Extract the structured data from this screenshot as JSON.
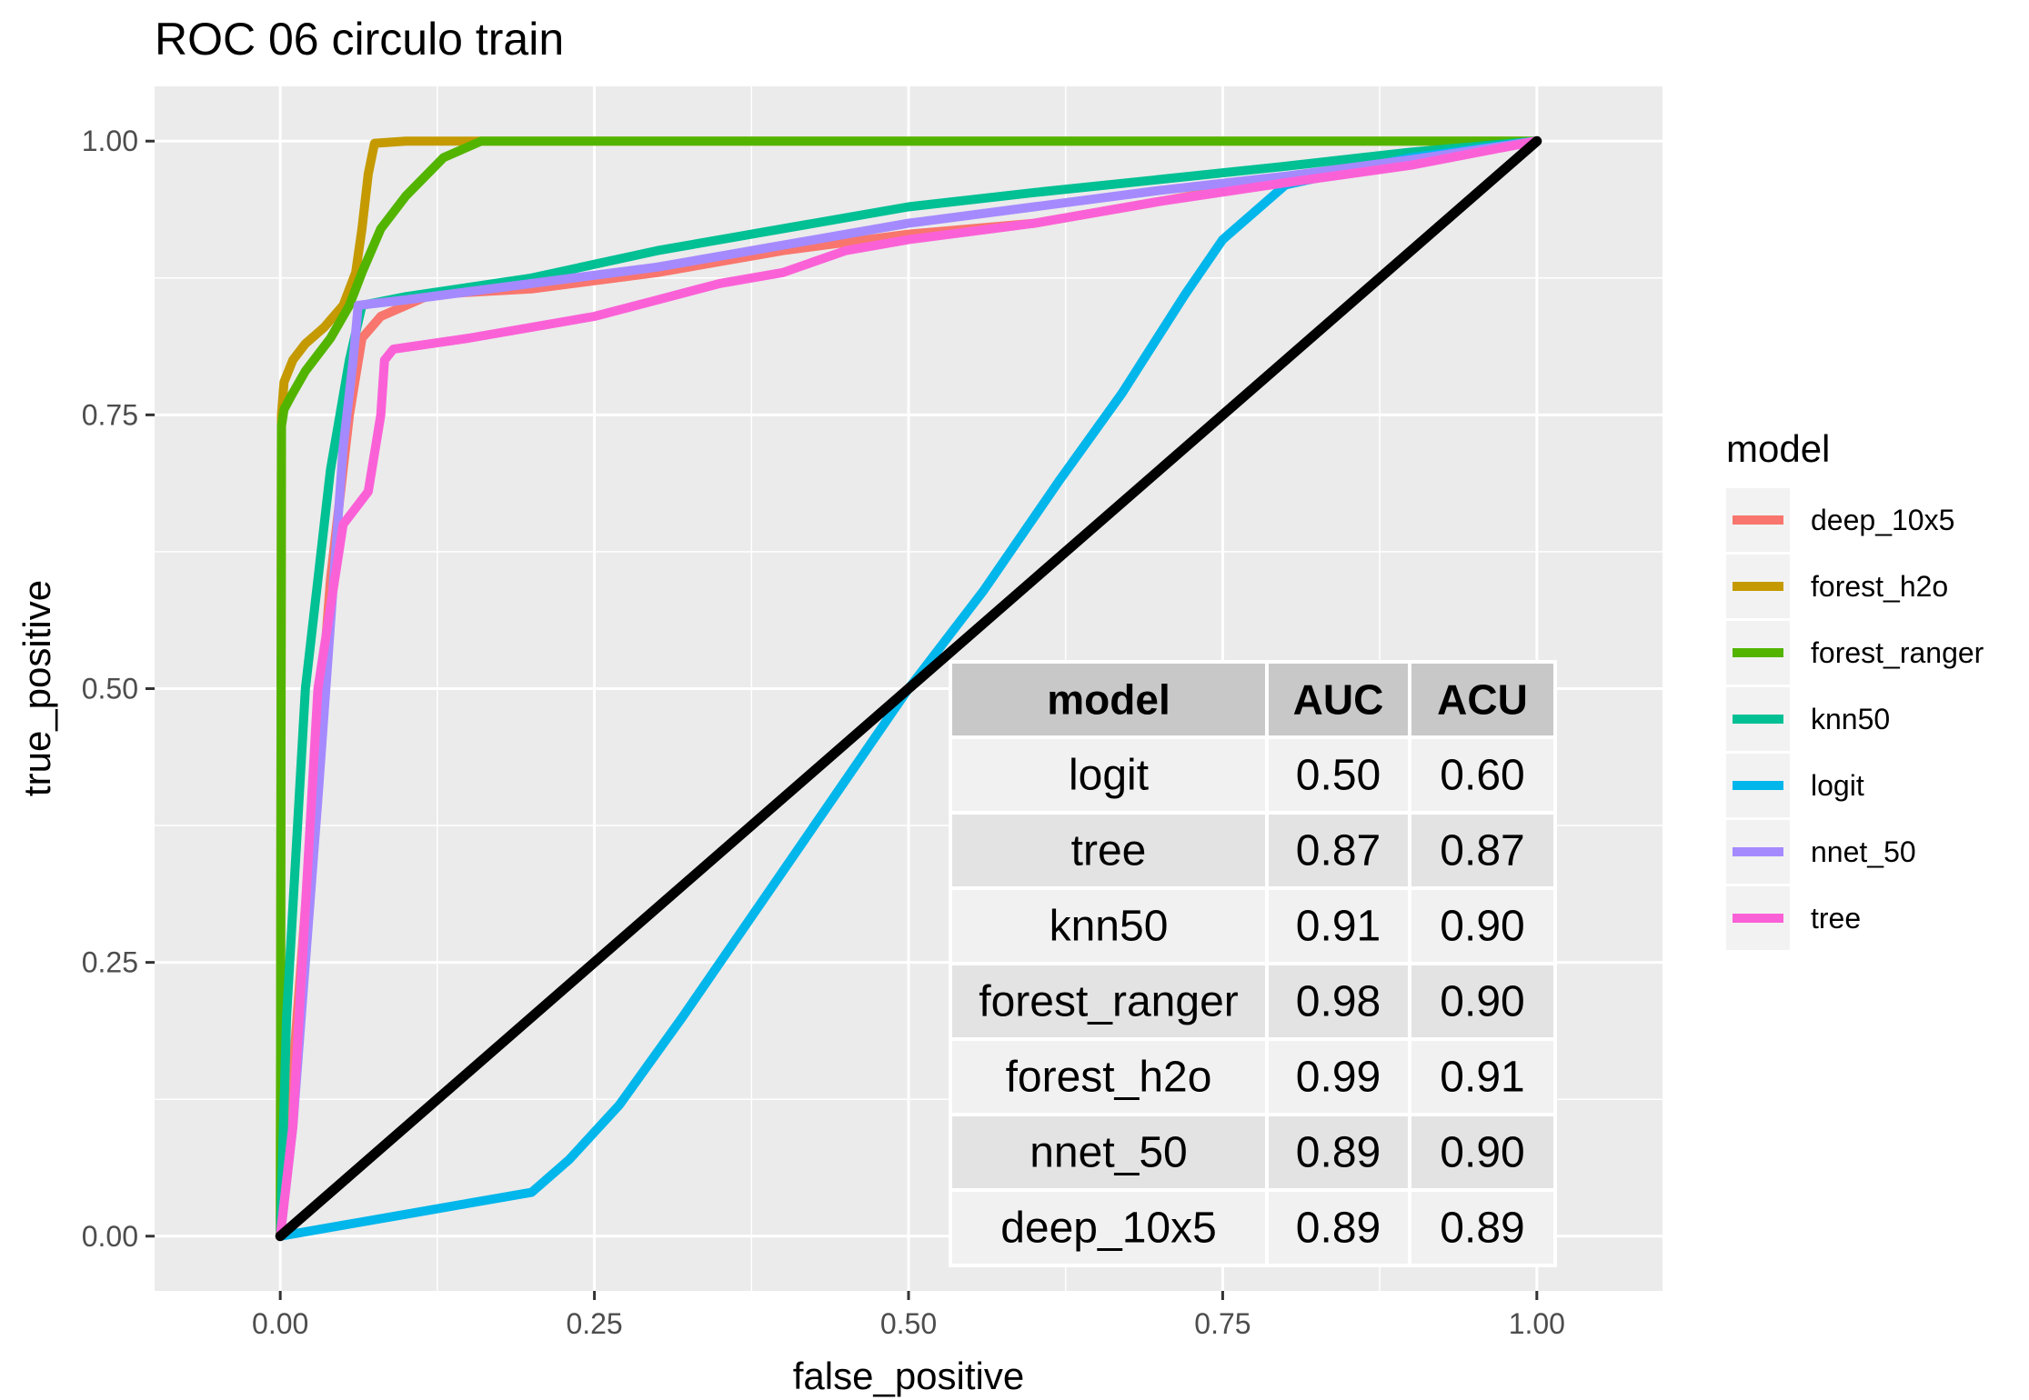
{
  "chart_data": {
    "type": "line",
    "title": "ROC 06 circulo train",
    "xlabel": "false_positive",
    "ylabel": "true_positive",
    "xlim": [
      -0.1,
      1.1
    ],
    "ylim": [
      -0.05,
      1.05
    ],
    "xticks": [
      "0.00",
      "0.25",
      "0.50",
      "0.75",
      "1.00"
    ],
    "yticks": [
      "0.00",
      "0.25",
      "0.50",
      "0.75",
      "1.00"
    ],
    "grid": true,
    "legend": {
      "title": "model",
      "position": "right",
      "entries": [
        "deep_10x5",
        "forest_h2o",
        "forest_ranger",
        "knn50",
        "logit",
        "nnet_50",
        "tree"
      ]
    },
    "colors": {
      "deep_10x5": "#F8766D",
      "forest_h2o": "#C49A00",
      "forest_ranger": "#53B400",
      "knn50": "#00C094",
      "logit": "#00B6EB",
      "nnet_50": "#A58AFF",
      "tree": "#FB61D7",
      "reference": "#000000"
    },
    "series": [
      {
        "name": "deep_10x5",
        "x": [
          0,
          0.02,
          0.04,
          0.055,
          0.065,
          0.08,
          0.12,
          0.2,
          0.3,
          0.4,
          0.5,
          0.6,
          0.7,
          0.75,
          0.8,
          0.85,
          0.9,
          1.0
        ],
        "y": [
          0,
          0.3,
          0.6,
          0.75,
          0.82,
          0.84,
          0.86,
          0.865,
          0.88,
          0.9,
          0.915,
          0.925,
          0.945,
          0.955,
          0.965,
          0.975,
          0.983,
          1.0
        ]
      },
      {
        "name": "forest_h2o",
        "x": [
          0,
          0.001,
          0.003,
          0.01,
          0.02,
          0.035,
          0.05,
          0.06,
          0.065,
          0.07,
          0.075,
          0.1,
          1.0
        ],
        "y": [
          0,
          0.75,
          0.78,
          0.8,
          0.815,
          0.83,
          0.85,
          0.88,
          0.92,
          0.97,
          0.998,
          1.0,
          1.0
        ]
      },
      {
        "name": "forest_ranger",
        "x": [
          0,
          0.001,
          0.003,
          0.01,
          0.02,
          0.04,
          0.055,
          0.065,
          0.08,
          0.1,
          0.13,
          0.16,
          1.0
        ],
        "y": [
          0,
          0.74,
          0.755,
          0.77,
          0.79,
          0.82,
          0.85,
          0.88,
          0.92,
          0.95,
          0.985,
          1.0,
          1.0
        ]
      },
      {
        "name": "knn50",
        "x": [
          0,
          0.005,
          0.02,
          0.04,
          0.055,
          0.065,
          0.1,
          0.2,
          0.3,
          0.4,
          0.5,
          0.6,
          0.7,
          0.8,
          0.9,
          1.0
        ],
        "y": [
          0,
          0.2,
          0.5,
          0.7,
          0.8,
          0.85,
          0.858,
          0.875,
          0.9,
          0.92,
          0.94,
          0.953,
          0.965,
          0.977,
          0.99,
          1.0
        ]
      },
      {
        "name": "logit",
        "x": [
          0,
          0.05,
          0.1,
          0.15,
          0.2,
          0.23,
          0.27,
          0.32,
          0.38,
          0.44,
          0.5,
          0.56,
          0.62,
          0.67,
          0.72,
          0.75,
          0.8,
          0.9,
          1.0
        ],
        "y": [
          0,
          0.01,
          0.02,
          0.03,
          0.04,
          0.07,
          0.12,
          0.2,
          0.3,
          0.4,
          0.5,
          0.59,
          0.69,
          0.77,
          0.86,
          0.91,
          0.96,
          0.985,
          1.0
        ]
      },
      {
        "name": "nnet_50",
        "x": [
          0,
          0.01,
          0.03,
          0.05,
          0.058,
          0.062,
          0.1,
          0.2,
          0.3,
          0.4,
          0.5,
          0.6,
          0.7,
          0.8,
          0.9,
          1.0
        ],
        "y": [
          0,
          0.1,
          0.4,
          0.72,
          0.8,
          0.85,
          0.855,
          0.87,
          0.885,
          0.905,
          0.925,
          0.94,
          0.955,
          0.968,
          0.983,
          1.0
        ]
      },
      {
        "name": "tree",
        "x": [
          0,
          0.01,
          0.03,
          0.05,
          0.07,
          0.08,
          0.083,
          0.09,
          0.15,
          0.25,
          0.3,
          0.35,
          0.4,
          0.45,
          0.5,
          0.6,
          0.7,
          0.8,
          0.9,
          1.0
        ],
        "y": [
          0,
          0.1,
          0.5,
          0.65,
          0.68,
          0.75,
          0.8,
          0.81,
          0.82,
          0.84,
          0.855,
          0.87,
          0.88,
          0.9,
          0.91,
          0.925,
          0.945,
          0.962,
          0.978,
          1.0
        ]
      }
    ],
    "reference_line": {
      "x": [
        0,
        1
      ],
      "y": [
        0,
        1
      ]
    },
    "table": {
      "headers": [
        "model",
        "AUC",
        "ACU"
      ],
      "rows": [
        [
          "logit",
          "0.50",
          "0.60"
        ],
        [
          "tree",
          "0.87",
          "0.87"
        ],
        [
          "knn50",
          "0.91",
          "0.90"
        ],
        [
          "forest_ranger",
          "0.98",
          "0.90"
        ],
        [
          "forest_h2o",
          "0.99",
          "0.91"
        ],
        [
          "nnet_50",
          "0.89",
          "0.90"
        ],
        [
          "deep_10x5",
          "0.89",
          "0.89"
        ]
      ]
    }
  }
}
